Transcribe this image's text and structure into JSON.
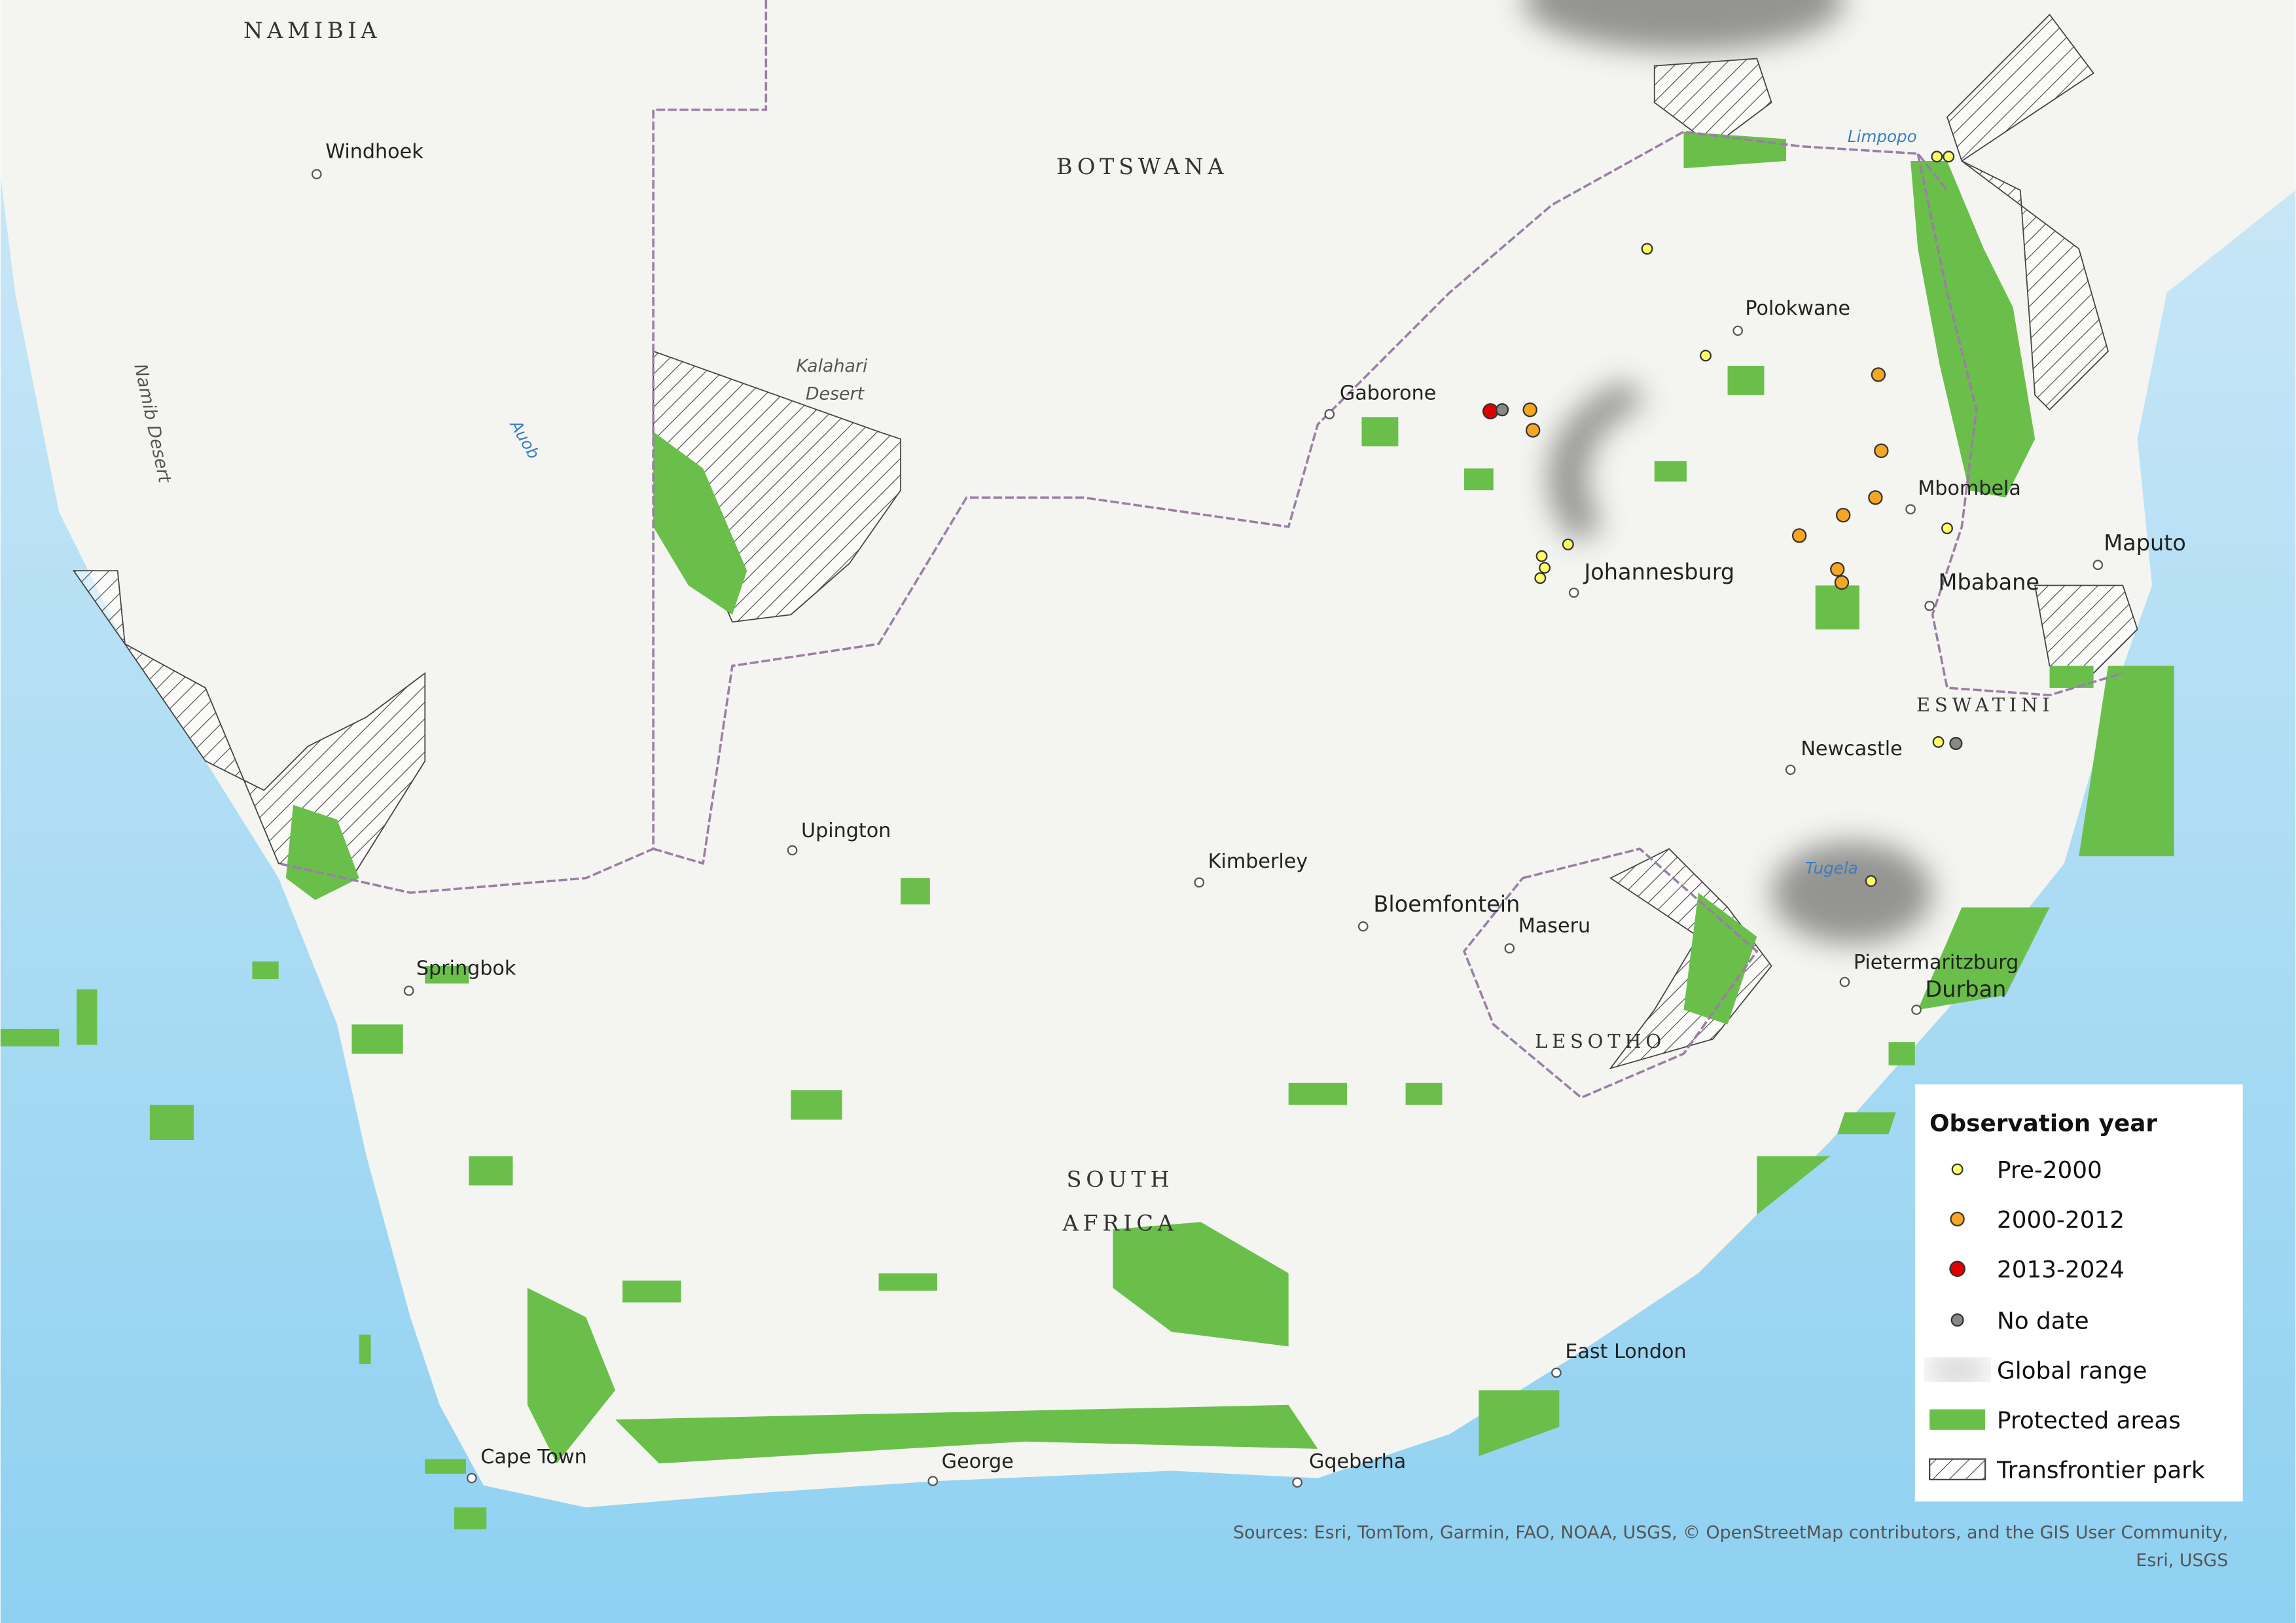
{
  "map": {
    "countries": [
      "NAMIBIA",
      "BOTSWANA",
      [
        "SOUTH",
        "AFRICA"
      ],
      "LESOTHO",
      "ESWATINI"
    ],
    "cities": [
      "Windhoek",
      "Gaborone",
      "Polokwane",
      "Johannesburg",
      "Mbombela",
      "Maputo",
      "Mbabane",
      "Newcastle",
      "Upington",
      "Kimberley",
      "Bloemfontein",
      "Maseru",
      "Springbok",
      "Pietermaritzburg",
      "Durban",
      "East London",
      "Cape Town",
      "George",
      "Gqeberha"
    ],
    "features": [
      [
        "Kalahari",
        "Desert"
      ],
      "Namib Desert",
      "Auob",
      "Limpopo",
      "Tugela"
    ],
    "legend": {
      "title": "Observation year",
      "items": [
        "Pre-2000",
        "2000-2012",
        "2013-2024",
        "No date",
        "Global range",
        "Protected areas",
        "Transfrontier park"
      ]
    },
    "sources": [
      "Sources: Esri, TomTom, Garmin, FAO, NOAA, USGS, © OpenStreetMap contributors, and the GIS User Community,",
      "Esri, USGS"
    ]
  }
}
